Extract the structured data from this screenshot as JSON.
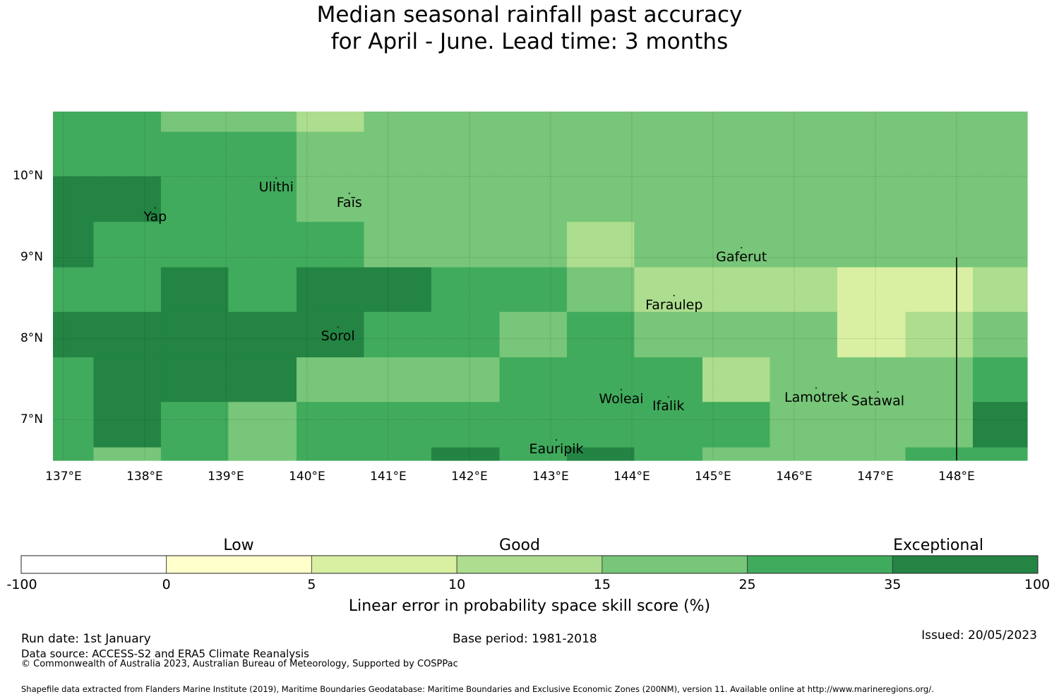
{
  "title": {
    "line1": "Median seasonal rainfall past accuracy",
    "line2": "for April - June. Lead time: 3 months"
  },
  "map": {
    "x_ticks": [
      "137°E",
      "138°E",
      "139°E",
      "140°E",
      "141°E",
      "142°E",
      "143°E",
      "144°E",
      "145°E",
      "146°E",
      "147°E",
      "148°E"
    ],
    "y_ticks": [
      "10°N",
      "9°N",
      "8°N",
      "7°N"
    ],
    "lon_values": [
      137,
      138,
      139,
      140,
      141,
      142,
      143,
      144,
      145,
      146,
      147,
      148
    ],
    "lat_values": [
      10,
      9,
      8,
      7
    ],
    "lon_range": [
      136.87,
      148.87
    ],
    "lat_range": [
      6.5,
      10.8
    ],
    "eez_boundary_longitude": 148.0,
    "eez_boundary_lat_range": [
      6.5,
      9.0
    ],
    "places": [
      {
        "name": "Ulithi",
        "lon": 139.62,
        "lat": 9.86
      },
      {
        "name": "Faīs",
        "lon": 140.52,
        "lat": 9.67
      },
      {
        "name": "Yap",
        "lon": 138.13,
        "lat": 9.49
      },
      {
        "name": "Gaferut",
        "lon": 145.35,
        "lat": 9.0
      },
      {
        "name": "Faraulep",
        "lon": 144.52,
        "lat": 8.41
      },
      {
        "name": "Sorol",
        "lon": 140.38,
        "lat": 8.02
      },
      {
        "name": "Woleai",
        "lon": 143.87,
        "lat": 7.25
      },
      {
        "name": "Ifalik",
        "lon": 144.45,
        "lat": 7.16
      },
      {
        "name": "Lamotrek",
        "lon": 146.27,
        "lat": 7.27
      },
      {
        "name": "Satawal",
        "lon": 147.03,
        "lat": 7.22
      },
      {
        "name": "Eauripik",
        "lon": 143.07,
        "lat": 6.63
      }
    ]
  },
  "grid": {
    "col_edges_lon": [
      136.87,
      137.37,
      138.2,
      139.03,
      139.87,
      140.7,
      141.53,
      142.37,
      143.2,
      144.03,
      144.87,
      145.7,
      146.53,
      147.37,
      148.2,
      148.87
    ],
    "row_edges_lat": [
      10.8,
      10.55,
      10.0,
      9.44,
      8.88,
      8.33,
      7.77,
      7.22,
      6.66,
      6.5
    ],
    "rows": [
      [
        5,
        5,
        4,
        4,
        3,
        4,
        4,
        4,
        4,
        4,
        4,
        4,
        4,
        4,
        4
      ],
      [
        5,
        5,
        5,
        5,
        4,
        4,
        4,
        4,
        4,
        4,
        4,
        4,
        4,
        4,
        4
      ],
      [
        6,
        6,
        5,
        5,
        4,
        4,
        4,
        4,
        4,
        4,
        4,
        4,
        4,
        4,
        4
      ],
      [
        6,
        5,
        5,
        5,
        5,
        4,
        4,
        4,
        3,
        4,
        4,
        4,
        4,
        4,
        4
      ],
      [
        5,
        5,
        6,
        5,
        6,
        6,
        5,
        5,
        4,
        3,
        3,
        3,
        2,
        2,
        3
      ],
      [
        6,
        6,
        6,
        6,
        6,
        5,
        5,
        4,
        5,
        4,
        4,
        4,
        2,
        3,
        4
      ],
      [
        5,
        6,
        6,
        6,
        4,
        4,
        4,
        5,
        5,
        5,
        3,
        4,
        4,
        4,
        5
      ],
      [
        5,
        6,
        5,
        4,
        5,
        5,
        5,
        5,
        5,
        5,
        5,
        4,
        4,
        4,
        6
      ],
      [
        5,
        4,
        5,
        4,
        5,
        5,
        6,
        5,
        6,
        5,
        4,
        4,
        4,
        5,
        5
      ]
    ]
  },
  "colorbar": {
    "tick_labels": [
      "-100",
      "0",
      "5",
      "10",
      "15",
      "25",
      "35",
      "100"
    ],
    "colors": [
      "#ffffff",
      "#ffffcc",
      "#d9f0a3",
      "#addd8e",
      "#78c679",
      "#41ab5d",
      "#238443"
    ],
    "categories": [
      "Low",
      "Good",
      "Exceptional"
    ],
    "title": "Linear error in probability space skill score (%)"
  },
  "footer": {
    "run_date": "Run date: 1st January",
    "base_period": "Base period: 1981-2018",
    "issued": "Issued: 20/05/2023",
    "data_source": "Data source: ACCESS-S2 and ERA5 Climate Reanalysis",
    "copyright": "© Commonwealth of Australia 2023, Australian Bureau of Meteorology, Supported by COSPPac",
    "shapefile": "Shapefile data extracted from Flanders Marine Institute (2019), Maritime Boundaries Geodatabase: Maritime Boundaries and Exclusive Economic Zones (200NM), version 11. Available online at http://www.marineregions.org/."
  }
}
